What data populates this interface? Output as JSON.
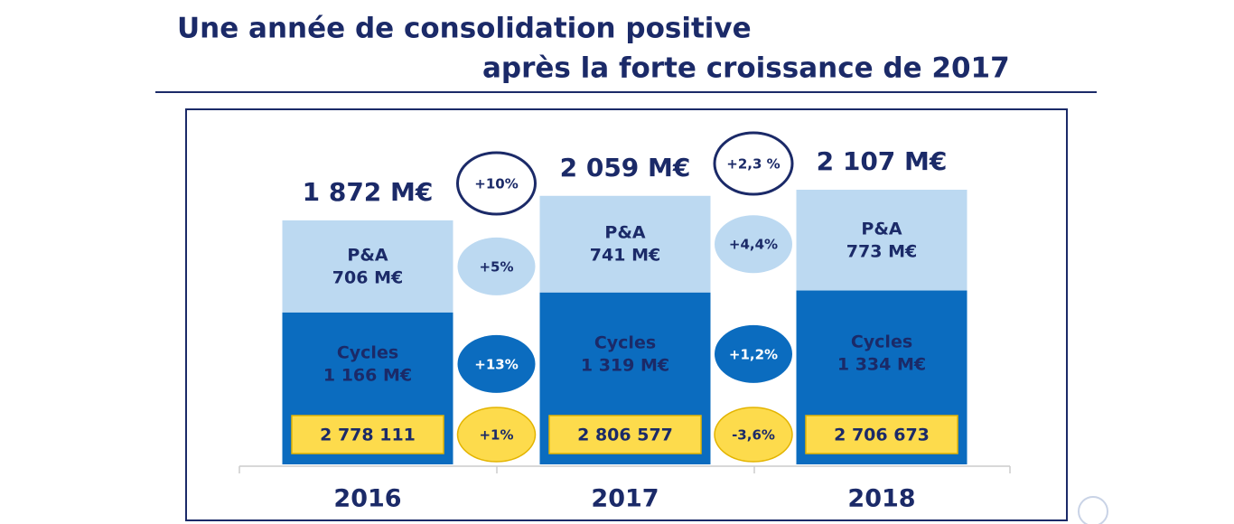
{
  "chart_data": {
    "type": "bar",
    "title": [
      "Une année de consolidation positive",
      "après la forte croissance de 2017"
    ],
    "categories": [
      "2016",
      "2017",
      "2018"
    ],
    "series": [
      {
        "name": "Cycles",
        "color": "#0b6cbf",
        "values": [
          1166,
          1319,
          1334
        ],
        "value_labels": [
          "1 166 M€",
          "1 319 M€",
          "1 334 M€"
        ]
      },
      {
        "name": "P&A",
        "color": "#bcd9f1",
        "values": [
          706,
          741,
          773
        ],
        "value_labels": [
          "706 M€",
          "741 M€",
          "773 M€"
        ]
      }
    ],
    "totals": {
      "values": [
        1872,
        2059,
        2107
      ],
      "value_labels": [
        "1 872 M€",
        "2 059 M€",
        "2 107 M€"
      ]
    },
    "units": {
      "color": "#fddb4c",
      "values": [
        2778111,
        2806577,
        2706673
      ],
      "value_labels": [
        "2 778 111",
        "2 806 577",
        "2 706 673"
      ]
    },
    "growth": [
      {
        "values": [
          10,
          5,
          13,
          1
        ],
        "value_labels": [
          "+10%",
          "+5%",
          "+13%",
          "+1%"
        ]
      },
      {
        "values": [
          2.3,
          4.4,
          1.2,
          -3.6
        ],
        "value_labels": [
          "+2,3 %",
          "+4,4%",
          "+1,2%",
          "-3,6%"
        ]
      }
    ]
  }
}
